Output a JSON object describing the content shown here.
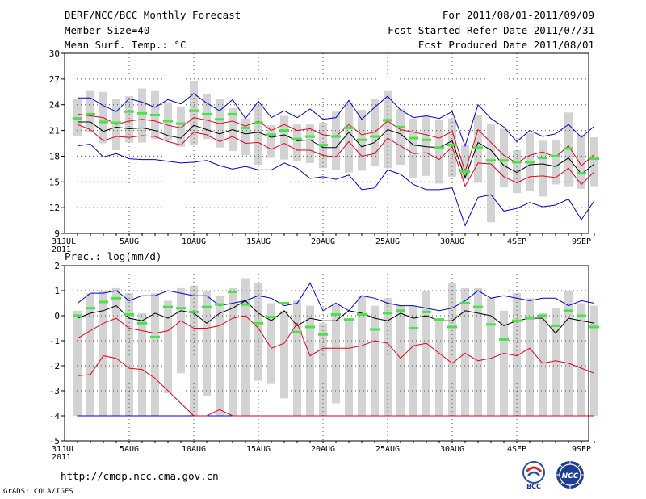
{
  "header": {
    "title": "DERF/NCC/BCC Monthly Forecast",
    "member_size": "Member Size=40",
    "variable": "Mean Surf. Temp.: °C",
    "forecast_period": "For 2011/08/01-2011/09/09",
    "started_refer": "Fcst Started Refer Date 2011/07/31",
    "produced": "Fcst Produced Date 2011/08/01"
  },
  "footer": {
    "url": "http://cmdp.ncc.cma.gov.cn",
    "credit": "GrADS: COLA/IGES",
    "logo_bcc_text": "BCC",
    "logo_ncc_text": "NCC"
  },
  "colors": {
    "box": "#d3d3d3",
    "median": "#44e544",
    "ensemble_mean": "#000000",
    "inner_bound": "#e8001a",
    "outer_bound": "#0000d6",
    "grid": "#555555"
  },
  "chart_data": [
    {
      "type": "box-line",
      "title": "Mean Surf. Temp.: °C",
      "x_labels": [
        "31JUL\n2011",
        "5AUG",
        "10AUG",
        "15AUG",
        "20AUG",
        "25AUG",
        "30AUG",
        "4SEP",
        "9SEP"
      ],
      "days": 41,
      "ylim": [
        9,
        30
      ],
      "yticks": [
        9,
        12,
        15,
        18,
        21,
        24,
        27,
        30
      ],
      "box_low": [
        20.4,
        20.8,
        19.5,
        18.7,
        19.6,
        19.6,
        20.0,
        19.8,
        19.1,
        19.3,
        20.0,
        19.0,
        18.6,
        18.1,
        17.0,
        17.8,
        17.6,
        17.4,
        17.2,
        16.6,
        16.4,
        16.1,
        16.3,
        16.8,
        16.6,
        17.0,
        15.4,
        15.7,
        14.8,
        15.6,
        15.3,
        14.9,
        10.3,
        14.4,
        13.7,
        13.9,
        13.3,
        14.7,
        14.5,
        14.2,
        14.5
      ],
      "box_high": [
        24.7,
        25.6,
        25.5,
        24.7,
        25.0,
        25.9,
        25.6,
        24.3,
        23.8,
        26.8,
        25.3,
        24.7,
        23.6,
        22.4,
        24.0,
        21.6,
        22.7,
        21.7,
        21.7,
        21.9,
        23.2,
        24.3,
        23.4,
        24.7,
        25.6,
        23.5,
        22.4,
        22.7,
        22.2,
        22.4,
        19.3,
        22.8,
        21.8,
        21.2,
        18.7,
        20.7,
        19.8,
        19.9,
        23.1,
        20.5,
        20.2
      ],
      "median": [
        22.4,
        22.9,
        22.0,
        21.9,
        23.2,
        23.0,
        22.8,
        22.1,
        21.8,
        23.3,
        22.9,
        22.3,
        22.9,
        21.3,
        21.9,
        20.5,
        21.0,
        20.0,
        20.3,
        19.3,
        20.3,
        21.3,
        19.9,
        20.3,
        22.2,
        21.4,
        20.1,
        19.9,
        19.0,
        19.3,
        16.2,
        19.0,
        17.5,
        17.5,
        17.3,
        17.3,
        17.8,
        18.0,
        18.9,
        16.0,
        17.7
      ],
      "ensemble_mean": [
        22.0,
        22.0,
        20.9,
        21.4,
        21.2,
        21.3,
        21.0,
        20.4,
        20.1,
        21.6,
        21.1,
        20.6,
        21.1,
        20.6,
        20.8,
        20.2,
        20.5,
        19.8,
        19.9,
        19.0,
        19.0,
        20.8,
        19.1,
        19.6,
        21.1,
        20.6,
        19.3,
        19.1,
        19.0,
        19.8,
        15.5,
        19.6,
        18.7,
        16.9,
        16.1,
        17.0,
        17.1,
        16.8,
        17.8,
        15.9,
        17.1
      ],
      "inner_upper": [
        22.9,
        22.7,
        22.5,
        21.7,
        22.1,
        22.3,
        22.1,
        21.6,
        21.3,
        22.5,
        22.2,
        21.8,
        22.1,
        21.5,
        22.1,
        21.0,
        21.7,
        21.0,
        21.2,
        20.5,
        20.3,
        21.7,
        20.5,
        20.8,
        22.1,
        21.1,
        20.8,
        20.5,
        20.1,
        20.9,
        16.2,
        21.1,
        19.6,
        18.1,
        17.2,
        18.1,
        18.5,
        17.9,
        19.2,
        16.9,
        18.2
      ],
      "inner_lower": [
        21.7,
        21.1,
        19.8,
        20.3,
        20.2,
        20.4,
        20.3,
        19.7,
        19.3,
        20.8,
        20.5,
        19.7,
        20.3,
        19.5,
        19.6,
        18.8,
        19.5,
        18.7,
        18.7,
        18.1,
        17.9,
        19.7,
        18.0,
        18.3,
        20.1,
        19.2,
        18.3,
        18.4,
        17.6,
        19.1,
        14.5,
        17.2,
        17.1,
        15.6,
        14.9,
        15.6,
        15.7,
        15.5,
        16.6,
        14.7,
        16.2
      ],
      "outer_upper": [
        24.8,
        24.8,
        23.9,
        23.2,
        24.7,
        24.3,
        23.7,
        24.6,
        24.1,
        25.3,
        24.2,
        23.3,
        24.6,
        22.4,
        24.4,
        22.5,
        23.3,
        22.5,
        23.5,
        22.3,
        22.5,
        24.5,
        22.3,
        23.7,
        25.0,
        23.4,
        22.5,
        22.7,
        22.4,
        23.2,
        19.2,
        24.0,
        22.4,
        21.4,
        19.7,
        21.0,
        20.3,
        20.6,
        21.7,
        20.2,
        21.5
      ],
      "outer_lower": [
        19.2,
        19.4,
        17.9,
        18.3,
        17.7,
        17.6,
        17.6,
        17.4,
        17.2,
        17.3,
        17.5,
        16.9,
        16.5,
        16.8,
        16.4,
        16.4,
        17.2,
        16.6,
        15.4,
        15.6,
        15.3,
        15.8,
        14.1,
        14.3,
        16.4,
        15.9,
        14.7,
        14.1,
        14.1,
        14.3,
        9.9,
        13.2,
        13.5,
        11.6,
        11.9,
        12.6,
        12.1,
        12.3,
        13.0,
        10.6,
        12.8
      ]
    },
    {
      "type": "box-line",
      "title": "Prec.: log(mm/d)",
      "x_labels": [
        "31JUL\n2011",
        "5AUG",
        "10AUG",
        "15AUG",
        "20AUG",
        "25AUG",
        "30AUG",
        "4SEP",
        "9SEP"
      ],
      "days": 41,
      "ylim": [
        -5,
        2
      ],
      "yticks": [
        -5,
        -4,
        -3,
        -2,
        -1,
        0,
        1,
        2
      ],
      "box_low": [
        -4,
        -4,
        -4,
        -4,
        -4,
        -4,
        -4,
        -3.1,
        -2.3,
        -4,
        -3.2,
        -4,
        -4,
        -4,
        -2.6,
        -2.7,
        -3.3,
        -4,
        -4,
        -4,
        -3.5,
        -4,
        -4,
        -4,
        -4,
        -4,
        -4,
        -4,
        -4,
        -4,
        -4,
        -4,
        -4,
        -4,
        -4,
        -4,
        -4,
        -4,
        -4,
        -4,
        -4
      ],
      "box_high": [
        0.2,
        0.9,
        1.0,
        1.1,
        0.9,
        0.1,
        0.9,
        0.6,
        1.1,
        1.2,
        1.0,
        0.8,
        1.1,
        1.5,
        1.3,
        0.5,
        0.2,
        0.6,
        0.4,
        -0.3,
        0.5,
        -0.2,
        0.8,
        0.4,
        0.7,
        0.4,
        0.4,
        1.0,
        -0.1,
        1.3,
        1.1,
        1.1,
        0.7,
        0.2,
        0.9,
        0.7,
        0.1,
        0.3,
        1.0,
        0.5,
        0.4
      ],
      "median": [
        0.0,
        0.3,
        0.55,
        0.7,
        0.05,
        -0.3,
        -0.85,
        0.35,
        0.3,
        0.15,
        0.35,
        0.45,
        0.95,
        0.45,
        -0.3,
        -0.05,
        0.5,
        -0.65,
        -0.45,
        -0.75,
        0.05,
        -0.15,
        0.05,
        -0.55,
        0.1,
        0.2,
        -0.5,
        0.15,
        -0.15,
        -0.45,
        0.5,
        0.35,
        -0.35,
        -0.95,
        -0.2,
        -0.1,
        0.0,
        -0.4,
        0.2,
        0.0,
        -0.45
      ],
      "ensemble_mean": [
        -0.1,
        0.1,
        0.2,
        0.4,
        -0.1,
        -0.2,
        0.1,
        -0.1,
        0.2,
        0.1,
        -0.3,
        0.1,
        0.3,
        0.6,
        0.1,
        -0.2,
        0.2,
        -0.4,
        -0.1,
        -0.2,
        -0.2,
        0.2,
        0.1,
        -0.1,
        -0.2,
        0.1,
        -0.1,
        0.0,
        -0.2,
        -0.2,
        0.2,
        0.1,
        0.0,
        -0.4,
        -0.2,
        -0.1,
        -0.1,
        -0.7,
        -0.1,
        -0.2,
        -0.3
      ],
      "inner_upper": [
        -0.9,
        -0.6,
        -0.3,
        -0.1,
        -0.5,
        -0.6,
        -0.7,
        -0.6,
        -0.2,
        -0.5,
        -0.5,
        -0.4,
        -0.1,
        0.0,
        -0.5,
        -1.3,
        -1.1,
        -0.3,
        -1.6,
        -1.3,
        -1.3,
        -1.3,
        -1.2,
        -1.0,
        -1.1,
        -1.7,
        -1.2,
        -1.1,
        -1.5,
        -1.9,
        -1.5,
        -1.8,
        -1.7,
        -1.5,
        -1.6,
        -1.3,
        -1.9,
        -1.8,
        -1.9,
        -2.1,
        -2.3
      ],
      "inner_lower": [
        -2.4,
        -2.35,
        -1.6,
        -1.7,
        -2.1,
        -2.15,
        -2.5,
        -3.0,
        -3.5,
        -4,
        -4,
        -3.75,
        -4,
        -4,
        -4,
        -4,
        -4,
        -4,
        -4,
        -4,
        -4,
        -4,
        -4,
        -4,
        -4,
        -4,
        -4,
        -4,
        -4,
        -4,
        -4,
        -4,
        -4,
        -4,
        -4,
        -4,
        -4,
        -4,
        -4,
        -4,
        -4
      ],
      "outer_upper": [
        0.5,
        0.9,
        0.9,
        1.0,
        0.6,
        0.8,
        0.8,
        1.0,
        0.9,
        0.8,
        0.8,
        0.4,
        0.5,
        0.6,
        0.8,
        0.7,
        0.4,
        0.5,
        1.3,
        0.2,
        0.5,
        0.2,
        0.8,
        0.7,
        0.5,
        0.4,
        0.4,
        0.3,
        0.2,
        0.3,
        0.6,
        1.0,
        0.7,
        0.8,
        0.7,
        0.6,
        0.7,
        0.7,
        0.4,
        0.6,
        0.5
      ],
      "outer_lower": [
        -4,
        -4,
        -4,
        -4,
        -4,
        -4,
        -4,
        -4,
        -4,
        -4,
        -4,
        -4,
        -4,
        -4,
        -4,
        -4,
        -4,
        -4,
        -4,
        -4,
        -4,
        -4,
        -4,
        -4,
        -4,
        -4,
        -4,
        -4,
        -4,
        -4,
        -4,
        -4,
        -4,
        -4,
        -4,
        -4,
        -4,
        -4,
        -4,
        -4,
        -4
      ]
    }
  ]
}
